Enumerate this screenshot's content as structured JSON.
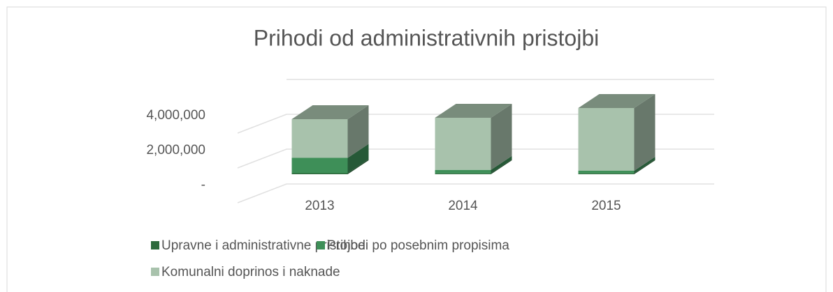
{
  "chart_data": {
    "type": "bar3d_stacked",
    "title": "Prihodi od administrativnih pristojbi",
    "categories": [
      "2013",
      "2014",
      "2015"
    ],
    "series": [
      {
        "name": "Upravne i administrativne pristojbe",
        "color": "#2d6a3c",
        "values": [
          60000,
          50000,
          50000
        ]
      },
      {
        "name": "Prihodi po posebnim propisima",
        "color": "#3e8f58",
        "values": [
          880000,
          200000,
          150000
        ]
      },
      {
        "name": "Komunalni doprinos i naknade",
        "color": "#a8c2ac",
        "values": [
          2220000,
          2990000,
          3600000
        ]
      }
    ],
    "ylim": [
      0,
      6000000
    ],
    "yticks": [
      {
        "value": 0,
        "label": "-"
      },
      {
        "value": 2000000,
        "label": "2,000,000"
      },
      {
        "value": 4000000,
        "label": "4,000,000"
      }
    ],
    "grid": true
  }
}
